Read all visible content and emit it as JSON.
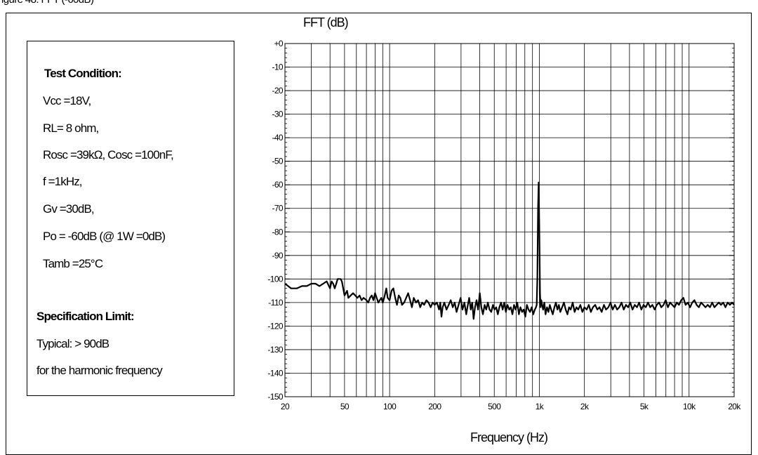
{
  "caption": "igure 48: FFT (-60dB)",
  "condition_box": {
    "heading": "Test Condition:",
    "lines": [
      "Vcc =18V,",
      "RL= 8 ohm,",
      "Rosc =39kΩ, Cosc =100nF,",
      "f =1kHz,",
      "Gv =30dB,",
      " Po = -60dB (@ 1W =0dB)",
      "Tamb =25°C"
    ],
    "spec_heading": "Specification Limit:",
    "spec_lines": [
      "Typical: > 90dB",
      "for the harmonic   frequency"
    ]
  },
  "chart_data": {
    "type": "line",
    "title": "FFT (dB)",
    "xlabel": "Frequency (Hz)",
    "ylabel": "",
    "xscale": "log",
    "xlim": [
      20,
      20000
    ],
    "ylim": [
      -150,
      0
    ],
    "grid": true,
    "x_tick_values": [
      20,
      50,
      100,
      200,
      500,
      1000,
      2000,
      5000,
      10000,
      20000
    ],
    "x_tick_labels": [
      "20",
      "50",
      "100",
      "200",
      "500",
      "1k",
      "2k",
      "5k",
      "10k",
      "20k"
    ],
    "y_tick_values": [
      0,
      -10,
      -20,
      -30,
      -40,
      -50,
      -60,
      -70,
      -80,
      -90,
      -100,
      -110,
      -120,
      -130,
      -140,
      -150
    ],
    "y_tick_labels": [
      "+0",
      "-10",
      "-20",
      "-30",
      "-40",
      "-50",
      "-60",
      "-70",
      "-80",
      "-90",
      "-100",
      "-110",
      "-120",
      "-130",
      "-140",
      "-150"
    ],
    "series": [
      {
        "name": "",
        "color": "#000000",
        "points": [
          [
            20,
            -102
          ],
          [
            21,
            -103
          ],
          [
            22,
            -104
          ],
          [
            24,
            -104
          ],
          [
            26,
            -103
          ],
          [
            28,
            -103
          ],
          [
            30,
            -102
          ],
          [
            32,
            -102
          ],
          [
            34,
            -103
          ],
          [
            36,
            -102
          ],
          [
            38,
            -101
          ],
          [
            40,
            -104
          ],
          [
            41,
            -101
          ],
          [
            42,
            -102
          ],
          [
            43,
            -104
          ],
          [
            44,
            -102
          ],
          [
            45,
            -100
          ],
          [
            47,
            -100
          ],
          [
            48,
            -101
          ],
          [
            49,
            -104
          ],
          [
            50,
            -107
          ],
          [
            52,
            -105
          ],
          [
            53,
            -108
          ],
          [
            55,
            -107
          ],
          [
            57,
            -106
          ],
          [
            59,
            -107
          ],
          [
            61,
            -108
          ],
          [
            63,
            -107
          ],
          [
            65,
            -109
          ],
          [
            67,
            -108
          ],
          [
            70,
            -109
          ],
          [
            72,
            -110
          ],
          [
            74,
            -108
          ],
          [
            76,
            -107
          ],
          [
            78,
            -109
          ],
          [
            80,
            -106
          ],
          [
            82,
            -108
          ],
          [
            84,
            -110
          ],
          [
            86,
            -109
          ],
          [
            88,
            -108
          ],
          [
            90,
            -110
          ],
          [
            92,
            -108
          ],
          [
            95,
            -104
          ],
          [
            97,
            -108
          ],
          [
            100,
            -109
          ],
          [
            103,
            -105
          ],
          [
            106,
            -104
          ],
          [
            109,
            -108
          ],
          [
            112,
            -111
          ],
          [
            115,
            -107
          ],
          [
            118,
            -108
          ],
          [
            121,
            -111
          ],
          [
            125,
            -110
          ],
          [
            129,
            -108
          ],
          [
            133,
            -106
          ],
          [
            137,
            -109
          ],
          [
            141,
            -112
          ],
          [
            145,
            -108
          ],
          [
            150,
            -110
          ],
          [
            155,
            -109
          ],
          [
            160,
            -112
          ],
          [
            165,
            -110
          ],
          [
            170,
            -111
          ],
          [
            176,
            -109
          ],
          [
            182,
            -110
          ],
          [
            188,
            -112
          ],
          [
            194,
            -110
          ],
          [
            200,
            -111
          ],
          [
            207,
            -110
          ],
          [
            214,
            -113
          ],
          [
            218,
            -110
          ],
          [
            222,
            -116
          ],
          [
            226,
            -112
          ],
          [
            232,
            -110
          ],
          [
            240,
            -113
          ],
          [
            248,
            -111
          ],
          [
            256,
            -109
          ],
          [
            264,
            -112
          ],
          [
            272,
            -110
          ],
          [
            280,
            -114
          ],
          [
            289,
            -111
          ],
          [
            298,
            -108
          ],
          [
            307,
            -113
          ],
          [
            316,
            -110
          ],
          [
            325,
            -115
          ],
          [
            333,
            -111
          ],
          [
            340,
            -108
          ],
          [
            348,
            -113
          ],
          [
            356,
            -110
          ],
          [
            364,
            -117
          ],
          [
            372,
            -112
          ],
          [
            381,
            -109
          ],
          [
            390,
            -113
          ],
          [
            400,
            -106
          ],
          [
            410,
            -112
          ],
          [
            420,
            -115
          ],
          [
            431,
            -111
          ],
          [
            442,
            -113
          ],
          [
            453,
            -110
          ],
          [
            465,
            -113
          ],
          [
            477,
            -114
          ],
          [
            490,
            -111
          ],
          [
            502,
            -113
          ],
          [
            515,
            -112
          ],
          [
            528,
            -115
          ],
          [
            541,
            -112
          ],
          [
            555,
            -110
          ],
          [
            569,
            -113
          ],
          [
            583,
            -110
          ],
          [
            598,
            -114
          ],
          [
            613,
            -111
          ],
          [
            629,
            -113
          ],
          [
            645,
            -112
          ],
          [
            661,
            -115
          ],
          [
            678,
            -111
          ],
          [
            695,
            -113
          ],
          [
            712,
            -110
          ],
          [
            730,
            -115
          ],
          [
            748,
            -112
          ],
          [
            767,
            -114
          ],
          [
            786,
            -113
          ],
          [
            806,
            -116
          ],
          [
            826,
            -111
          ],
          [
            846,
            -113
          ],
          [
            867,
            -114
          ],
          [
            889,
            -112
          ],
          [
            911,
            -115
          ],
          [
            933,
            -113
          ],
          [
            950,
            -112
          ],
          [
            960,
            -111
          ],
          [
            970,
            -100
          ],
          [
            980,
            -70
          ],
          [
            990,
            -59
          ],
          [
            1000,
            -78
          ],
          [
            1010,
            -106
          ],
          [
            1020,
            -112
          ],
          [
            1030,
            -109
          ],
          [
            1045,
            -111
          ],
          [
            1060,
            -113
          ],
          [
            1080,
            -110
          ],
          [
            1100,
            -115
          ],
          [
            1125,
            -112
          ],
          [
            1150,
            -114
          ],
          [
            1175,
            -111
          ],
          [
            1200,
            -113
          ],
          [
            1230,
            -115
          ],
          [
            1260,
            -112
          ],
          [
            1290,
            -110
          ],
          [
            1320,
            -113
          ],
          [
            1350,
            -111
          ],
          [
            1380,
            -114
          ],
          [
            1420,
            -112
          ],
          [
            1460,
            -110
          ],
          [
            1500,
            -113
          ],
          [
            1540,
            -115
          ],
          [
            1580,
            -112
          ],
          [
            1620,
            -113
          ],
          [
            1670,
            -110
          ],
          [
            1720,
            -114
          ],
          [
            1770,
            -112
          ],
          [
            1820,
            -113
          ],
          [
            1880,
            -111
          ],
          [
            1940,
            -114
          ],
          [
            2000,
            -112
          ],
          [
            2070,
            -113
          ],
          [
            2140,
            -111
          ],
          [
            2210,
            -114
          ],
          [
            2280,
            -112
          ],
          [
            2360,
            -111
          ],
          [
            2440,
            -113
          ],
          [
            2520,
            -112
          ],
          [
            2610,
            -114
          ],
          [
            2700,
            -111
          ],
          [
            2790,
            -113
          ],
          [
            2890,
            -112
          ],
          [
            2990,
            -110
          ],
          [
            3090,
            -113
          ],
          [
            3200,
            -111
          ],
          [
            3310,
            -113
          ],
          [
            3420,
            -112
          ],
          [
            3540,
            -110
          ],
          [
            3660,
            -113
          ],
          [
            3790,
            -111
          ],
          [
            3920,
            -112
          ],
          [
            4050,
            -110
          ],
          [
            4190,
            -113
          ],
          [
            4340,
            -111
          ],
          [
            4490,
            -112
          ],
          [
            4640,
            -110
          ],
          [
            4800,
            -113
          ],
          [
            4970,
            -111
          ],
          [
            5140,
            -112
          ],
          [
            5320,
            -110
          ],
          [
            5500,
            -112
          ],
          [
            5690,
            -111
          ],
          [
            5890,
            -113
          ],
          [
            6090,
            -111
          ],
          [
            6300,
            -110
          ],
          [
            6520,
            -112
          ],
          [
            6750,
            -111
          ],
          [
            6980,
            -109
          ],
          [
            7220,
            -112
          ],
          [
            7470,
            -110
          ],
          [
            7730,
            -111
          ],
          [
            8000,
            -112
          ],
          [
            8280,
            -110
          ],
          [
            8560,
            -111
          ],
          [
            8860,
            -109
          ],
          [
            9160,
            -108
          ],
          [
            9480,
            -111
          ],
          [
            9810,
            -110
          ],
          [
            10150,
            -112
          ],
          [
            10500,
            -110
          ],
          [
            10860,
            -109
          ],
          [
            11240,
            -111
          ],
          [
            11630,
            -112
          ],
          [
            12030,
            -110
          ],
          [
            12450,
            -111
          ],
          [
            12880,
            -112
          ],
          [
            13320,
            -111
          ],
          [
            13790,
            -112
          ],
          [
            14260,
            -110
          ],
          [
            14760,
            -112
          ],
          [
            15270,
            -111
          ],
          [
            15800,
            -110
          ],
          [
            16350,
            -111
          ],
          [
            16910,
            -110
          ],
          [
            17500,
            -112
          ],
          [
            18110,
            -110
          ],
          [
            18740,
            -111
          ],
          [
            19390,
            -110
          ],
          [
            20000,
            -111
          ]
        ]
      }
    ]
  }
}
